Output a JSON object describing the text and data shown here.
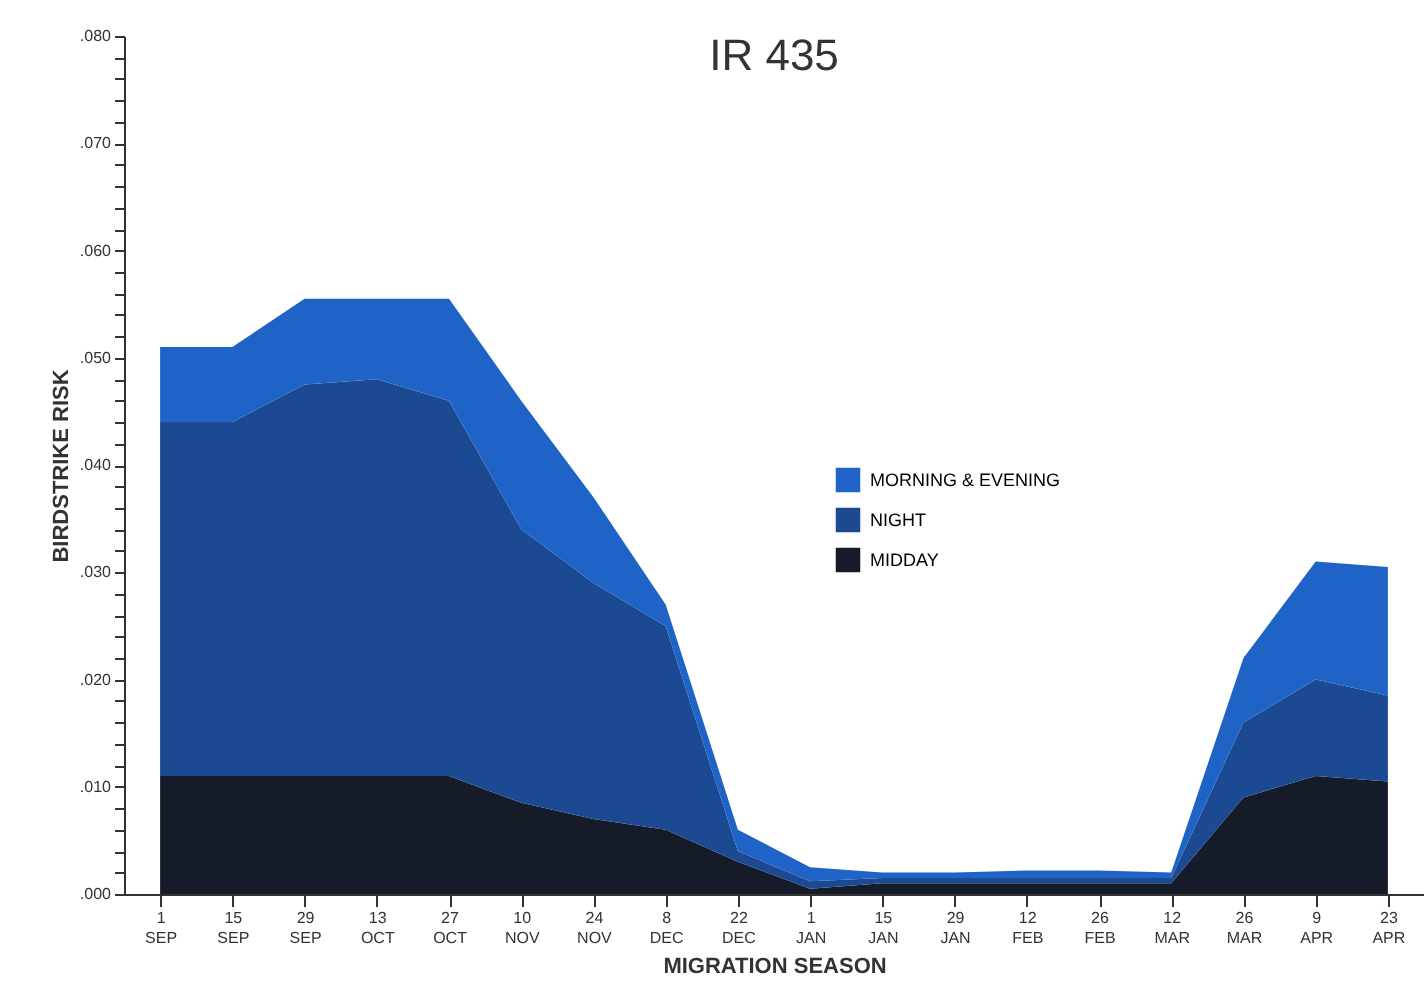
{
  "chart_data": {
    "type": "area",
    "title": "IR 435",
    "xlabel": "MIGRATION SEASON",
    "ylabel": "BIRDSTRIKE RISK",
    "stacked": true,
    "legend": "center",
    "grid": false,
    "categories": [
      "1 SEP",
      "15 SEP",
      "29 SEP",
      "13 OCT",
      "27 OCT",
      "10 NOV",
      "24 NOV",
      "8 DEC",
      "22 DEC",
      "1 JAN",
      "15 JAN",
      "29 JAN",
      "12 FEB",
      "26 FEB",
      "12 MAR",
      "26 MAR",
      "9 APR",
      "23 APR"
    ],
    "ylim": [
      0,
      0.08
    ],
    "yticks": [
      {
        "value": 0,
        "label": ".000"
      },
      {
        "value": 0.002,
        "label": null
      },
      {
        "value": 0.004,
        "label": null
      },
      {
        "value": 0.006,
        "label": null
      },
      {
        "value": 0.008,
        "label": null
      },
      {
        "value": 0.01,
        "label": ".010"
      },
      {
        "value": 0.012,
        "label": null
      },
      {
        "value": 0.014,
        "label": null
      },
      {
        "value": 0.016,
        "label": null
      },
      {
        "value": 0.018,
        "label": null
      },
      {
        "value": 0.02,
        "label": ".020"
      },
      {
        "value": 0.022,
        "label": null
      },
      {
        "value": 0.024,
        "label": null
      },
      {
        "value": 0.026,
        "label": null
      },
      {
        "value": 0.028,
        "label": null
      },
      {
        "value": 0.03,
        "label": ".030"
      },
      {
        "value": 0.032,
        "label": null
      },
      {
        "value": 0.034,
        "label": null
      },
      {
        "value": 0.036,
        "label": null
      },
      {
        "value": 0.038,
        "label": null
      },
      {
        "value": 0.04,
        "label": ".040"
      },
      {
        "value": 0.042,
        "label": null
      },
      {
        "value": 0.044,
        "label": null
      },
      {
        "value": 0.046,
        "label": null
      },
      {
        "value": 0.048,
        "label": null
      },
      {
        "value": 0.05,
        "label": ".050"
      },
      {
        "value": 0.052,
        "label": null
      },
      {
        "value": 0.054,
        "label": null
      },
      {
        "value": 0.056,
        "label": null
      },
      {
        "value": 0.058,
        "label": null
      },
      {
        "value": 0.06,
        "label": ".060"
      },
      {
        "value": 0.062,
        "label": null
      },
      {
        "value": 0.064,
        "label": null
      },
      {
        "value": 0.066,
        "label": null
      },
      {
        "value": 0.068,
        "label": null
      },
      {
        "value": 0.07,
        "label": ".070"
      },
      {
        "value": 0.072,
        "label": null
      },
      {
        "value": 0.074,
        "label": null
      },
      {
        "value": 0.076,
        "label": null
      },
      {
        "value": 0.078,
        "label": null
      },
      {
        "value": 0.08,
        "label": ".080"
      }
    ],
    "series": [
      {
        "name": "MIDDAY",
        "color": "#161b29",
        "values": [
          0.011,
          0.011,
          0.011,
          0.011,
          0.011,
          0.0085,
          0.007,
          0.006,
          0.003,
          0.0005,
          0.001,
          0.001,
          0.001,
          0.001,
          0.001,
          0.009,
          0.011,
          0.0105
        ]
      },
      {
        "name": "NIGHT",
        "color": "#1c4a92",
        "values": [
          0.033,
          0.033,
          0.0365,
          0.037,
          0.035,
          0.0255,
          0.022,
          0.019,
          0.001,
          0.0007,
          0.0005,
          0.0005,
          0.0005,
          0.0005,
          0.0005,
          0.007,
          0.009,
          0.008
        ]
      },
      {
        "name": "MORNING & EVENING",
        "color": "#1f63c6",
        "values": [
          0.007,
          0.007,
          0.008,
          0.0075,
          0.0095,
          0.012,
          0.008,
          0.002,
          0.002,
          0.0013,
          0.0005,
          0.0005,
          0.0007,
          0.0007,
          0.0005,
          0.006,
          0.011,
          0.012
        ]
      }
    ]
  }
}
